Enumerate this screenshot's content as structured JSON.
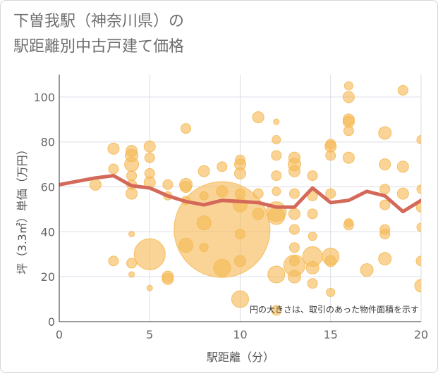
{
  "chart_data": {
    "type": "scatter",
    "title": "下曽我駅（神奈川県）の\n駅距離別中古戸建て価格",
    "xlabel": "駅距離（分）",
    "ylabel": "坪（3.3㎡）単価（万円）",
    "xlim": [
      0,
      20
    ],
    "ylim": [
      0,
      110
    ],
    "x_ticks": [
      0,
      5,
      10,
      15,
      20
    ],
    "y_ticks": [
      0,
      20,
      40,
      60,
      80,
      100
    ],
    "grid": true,
    "note": "円の大きさは、取引のあった物件面積を示す",
    "colors": {
      "bubble": "#f5b955",
      "line": "#d4695a",
      "grid": "#d9dde6"
    },
    "series": [
      {
        "type": "bubble",
        "points": [
          {
            "x": 3,
            "y": 77,
            "r": 8
          },
          {
            "x": 3,
            "y": 68,
            "r": 7
          },
          {
            "x": 3,
            "y": 27,
            "r": 7
          },
          {
            "x": 4,
            "y": 76,
            "r": 8
          },
          {
            "x": 4,
            "y": 74,
            "r": 9
          },
          {
            "x": 4,
            "y": 70,
            "r": 10
          },
          {
            "x": 4,
            "y": 65,
            "r": 7
          },
          {
            "x": 4,
            "y": 61,
            "r": 7
          },
          {
            "x": 4,
            "y": 57,
            "r": 8
          },
          {
            "x": 4,
            "y": 39,
            "r": 4
          },
          {
            "x": 4,
            "y": 26,
            "r": 7
          },
          {
            "x": 4,
            "y": 21,
            "r": 4
          },
          {
            "x": 5,
            "y": 78,
            "r": 8
          },
          {
            "x": 5,
            "y": 73,
            "r": 7
          },
          {
            "x": 5,
            "y": 66,
            "r": 7
          },
          {
            "x": 5,
            "y": 62,
            "r": 8
          },
          {
            "x": 5,
            "y": 30,
            "r": 22
          },
          {
            "x": 5,
            "y": 15,
            "r": 4
          },
          {
            "x": 2,
            "y": 61,
            "r": 8
          },
          {
            "x": 6,
            "y": 61,
            "r": 7
          },
          {
            "x": 6,
            "y": 56,
            "r": 6
          },
          {
            "x": 6,
            "y": 20,
            "r": 8
          },
          {
            "x": 6,
            "y": 19,
            "r": 8
          },
          {
            "x": 7,
            "y": 86,
            "r": 7
          },
          {
            "x": 7,
            "y": 61,
            "r": 9
          },
          {
            "x": 7,
            "y": 60,
            "r": 8
          },
          {
            "x": 7,
            "y": 54,
            "r": 6
          },
          {
            "x": 7,
            "y": 34,
            "r": 10
          },
          {
            "x": 8,
            "y": 67,
            "r": 8
          },
          {
            "x": 8,
            "y": 56,
            "r": 6
          },
          {
            "x": 8,
            "y": 44,
            "r": 10
          },
          {
            "x": 8,
            "y": 33,
            "r": 6
          },
          {
            "x": 9,
            "y": 69,
            "r": 7
          },
          {
            "x": 9,
            "y": 58,
            "r": 8
          },
          {
            "x": 9,
            "y": 41,
            "r": 68
          },
          {
            "x": 9,
            "y": 24,
            "r": 12
          },
          {
            "x": 10,
            "y": 72,
            "r": 7
          },
          {
            "x": 10,
            "y": 70,
            "r": 8
          },
          {
            "x": 10,
            "y": 66,
            "r": 8
          },
          {
            "x": 10,
            "y": 57,
            "r": 7
          },
          {
            "x": 10,
            "y": 52,
            "r": 10
          },
          {
            "x": 10,
            "y": 39,
            "r": 7
          },
          {
            "x": 10,
            "y": 27,
            "r": 8
          },
          {
            "x": 10,
            "y": 10,
            "r": 12
          },
          {
            "x": 11,
            "y": 91,
            "r": 8
          },
          {
            "x": 11,
            "y": 57,
            "r": 7
          },
          {
            "x": 11,
            "y": 48,
            "r": 8
          },
          {
            "x": 12,
            "y": 89,
            "r": 4
          },
          {
            "x": 12,
            "y": 81,
            "r": 6
          },
          {
            "x": 12,
            "y": 74,
            "r": 7
          },
          {
            "x": 12,
            "y": 65,
            "r": 7
          },
          {
            "x": 12,
            "y": 58,
            "r": 6
          },
          {
            "x": 12,
            "y": 49,
            "r": 14
          },
          {
            "x": 12,
            "y": 47,
            "r": 12
          },
          {
            "x": 12,
            "y": 21,
            "r": 12
          },
          {
            "x": 12,
            "y": 5,
            "r": 7
          },
          {
            "x": 13,
            "y": 73,
            "r": 8
          },
          {
            "x": 13,
            "y": 70,
            "r": 9
          },
          {
            "x": 13,
            "y": 67,
            "r": 8
          },
          {
            "x": 13,
            "y": 57,
            "r": 7
          },
          {
            "x": 13,
            "y": 48,
            "r": 8
          },
          {
            "x": 13,
            "y": 41,
            "r": 7
          },
          {
            "x": 13,
            "y": 33,
            "r": 7
          },
          {
            "x": 13,
            "y": 27,
            "r": 7
          },
          {
            "x": 13,
            "y": 25,
            "r": 15
          },
          {
            "x": 13,
            "y": 20,
            "r": 9
          },
          {
            "x": 14,
            "y": 65,
            "r": 7
          },
          {
            "x": 14,
            "y": 56,
            "r": 7
          },
          {
            "x": 14,
            "y": 48,
            "r": 7
          },
          {
            "x": 14,
            "y": 38,
            "r": 6
          },
          {
            "x": 14,
            "y": 29,
            "r": 14
          },
          {
            "x": 14,
            "y": 24,
            "r": 9
          },
          {
            "x": 14,
            "y": 17,
            "r": 7
          },
          {
            "x": 15,
            "y": 79,
            "r": 7
          },
          {
            "x": 15,
            "y": 78,
            "r": 8
          },
          {
            "x": 15,
            "y": 74,
            "r": 7
          },
          {
            "x": 15,
            "y": 57,
            "r": 7
          },
          {
            "x": 15,
            "y": 29,
            "r": 12
          },
          {
            "x": 15,
            "y": 27,
            "r": 8
          },
          {
            "x": 15,
            "y": 13,
            "r": 6
          },
          {
            "x": 16,
            "y": 105,
            "r": 6
          },
          {
            "x": 16,
            "y": 100,
            "r": 8
          },
          {
            "x": 16,
            "y": 90,
            "r": 8
          },
          {
            "x": 16,
            "y": 89,
            "r": 8
          },
          {
            "x": 16,
            "y": 85,
            "r": 7
          },
          {
            "x": 16,
            "y": 73,
            "r": 8
          },
          {
            "x": 16,
            "y": 44,
            "r": 6
          },
          {
            "x": 16,
            "y": 43,
            "r": 7
          },
          {
            "x": 17,
            "y": 23,
            "r": 9
          },
          {
            "x": 18,
            "y": 84,
            "r": 9
          },
          {
            "x": 18,
            "y": 70,
            "r": 8
          },
          {
            "x": 18,
            "y": 59,
            "r": 7
          },
          {
            "x": 18,
            "y": 52,
            "r": 7
          },
          {
            "x": 18,
            "y": 41,
            "r": 7
          },
          {
            "x": 18,
            "y": 39,
            "r": 7
          },
          {
            "x": 18,
            "y": 28,
            "r": 9
          },
          {
            "x": 19,
            "y": 103,
            "r": 7
          },
          {
            "x": 19,
            "y": 69,
            "r": 8
          },
          {
            "x": 19,
            "y": 57,
            "r": 8
          },
          {
            "x": 20,
            "y": 81,
            "r": 6
          },
          {
            "x": 20,
            "y": 59,
            "r": 6
          },
          {
            "x": 20,
            "y": 51,
            "r": 7
          },
          {
            "x": 20,
            "y": 42,
            "r": 6
          },
          {
            "x": 20,
            "y": 27,
            "r": 7
          },
          {
            "x": 20,
            "y": 16,
            "r": 9
          }
        ]
      },
      {
        "type": "line",
        "x": [
          0,
          1,
          2,
          3,
          4,
          5,
          6,
          7,
          8,
          9,
          10,
          11,
          12,
          13,
          14,
          15,
          16,
          17,
          18,
          19,
          20
        ],
        "values": [
          61,
          62.5,
          64,
          65,
          60.5,
          59.5,
          56,
          53.5,
          52,
          54,
          53.5,
          53,
          51,
          51,
          59.5,
          53,
          54,
          58,
          56,
          49,
          54
        ]
      }
    ]
  }
}
